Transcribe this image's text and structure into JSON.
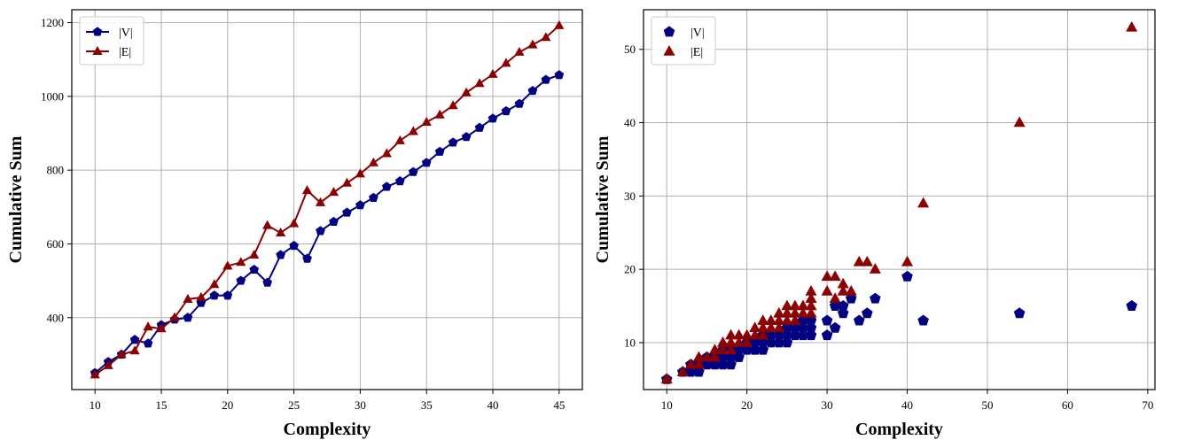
{
  "colors": {
    "V": "#000080",
    "E": "#8B0000",
    "grid": "#b0b0b0"
  },
  "chart_data": [
    {
      "type": "line",
      "xlabel": "Complexity",
      "ylabel": "Cumulative Sum",
      "xlim": [
        8.25,
        46.75
      ],
      "ylim": [
        205,
        1235
      ],
      "xticks": [
        10,
        15,
        20,
        25,
        30,
        35,
        40,
        45
      ],
      "yticks": [
        400,
        600,
        800,
        1000,
        1200
      ],
      "grid": true,
      "legend_position": "upper-left",
      "x": [
        10,
        11,
        12,
        13,
        14,
        15,
        16,
        17,
        18,
        19,
        20,
        21,
        22,
        23,
        24,
        25,
        26,
        27,
        28,
        29,
        30,
        31,
        32,
        33,
        34,
        35,
        36,
        37,
        38,
        39,
        40,
        41,
        42,
        43,
        44,
        45
      ],
      "series": [
        {
          "name": "|V|",
          "marker": "pentagon",
          "color": "#000080",
          "values": [
            250,
            280,
            300,
            340,
            330,
            380,
            395,
            400,
            440,
            460,
            460,
            500,
            530,
            495,
            570,
            595,
            560,
            635,
            660,
            685,
            705,
            725,
            755,
            770,
            795,
            820,
            850,
            875,
            890,
            915,
            940,
            960,
            980,
            1015,
            1045,
            1058
          ]
        },
        {
          "name": "|E|",
          "marker": "triangle",
          "color": "#8B0000",
          "values": [
            245,
            270,
            300,
            310,
            375,
            370,
            400,
            450,
            455,
            490,
            540,
            550,
            570,
            650,
            630,
            655,
            745,
            712,
            740,
            765,
            790,
            820,
            845,
            880,
            905,
            930,
            950,
            975,
            1010,
            1035,
            1060,
            1090,
            1120,
            1140,
            1160,
            1192
          ]
        }
      ]
    },
    {
      "type": "scatter",
      "xlabel": "Complexity",
      "ylabel": "Cumulative Sum",
      "xlim": [
        7.1,
        70.9
      ],
      "ylim": [
        3.6,
        55.4
      ],
      "xticks": [
        10,
        20,
        30,
        40,
        50,
        60,
        70
      ],
      "yticks": [
        10,
        20,
        30,
        40,
        50
      ],
      "grid": true,
      "legend_position": "upper-left",
      "series": [
        {
          "name": "|V|",
          "marker": "pentagon",
          "color": "#000080",
          "points": [
            [
              10,
              5
            ],
            [
              12,
              6
            ],
            [
              13,
              6
            ],
            [
              13,
              7
            ],
            [
              14,
              6
            ],
            [
              14,
              7
            ],
            [
              15,
              7
            ],
            [
              15,
              8
            ],
            [
              16,
              7
            ],
            [
              16,
              8
            ],
            [
              17,
              7
            ],
            [
              17,
              8
            ],
            [
              17,
              9
            ],
            [
              18,
              7
            ],
            [
              18,
              8
            ],
            [
              18,
              9
            ],
            [
              19,
              8
            ],
            [
              19,
              9
            ],
            [
              20,
              9
            ],
            [
              20,
              10
            ],
            [
              21,
              9
            ],
            [
              21,
              10
            ],
            [
              22,
              9
            ],
            [
              22,
              10
            ],
            [
              22,
              11
            ],
            [
              23,
              10
            ],
            [
              23,
              11
            ],
            [
              24,
              10
            ],
            [
              24,
              11
            ],
            [
              25,
              10
            ],
            [
              25,
              11
            ],
            [
              25,
              12
            ],
            [
              26,
              11
            ],
            [
              26,
              12
            ],
            [
              27,
              11
            ],
            [
              27,
              12
            ],
            [
              27,
              13
            ],
            [
              28,
              11
            ],
            [
              28,
              12
            ],
            [
              28,
              13
            ],
            [
              30,
              11
            ],
            [
              30,
              13
            ],
            [
              31,
              12
            ],
            [
              31,
              15
            ],
            [
              32,
              14
            ],
            [
              32,
              15
            ],
            [
              33,
              16
            ],
            [
              34,
              13
            ],
            [
              35,
              14
            ],
            [
              36,
              16
            ],
            [
              40,
              19
            ],
            [
              42,
              13
            ],
            [
              54,
              14
            ],
            [
              68,
              15
            ]
          ]
        },
        {
          "name": "|E|",
          "marker": "triangle",
          "color": "#8B0000",
          "points": [
            [
              10,
              5
            ],
            [
              12,
              6
            ],
            [
              13,
              7
            ],
            [
              14,
              7
            ],
            [
              14,
              8
            ],
            [
              15,
              8
            ],
            [
              16,
              8
            ],
            [
              16,
              9
            ],
            [
              17,
              9
            ],
            [
              17,
              10
            ],
            [
              18,
              9
            ],
            [
              18,
              10
            ],
            [
              18,
              11
            ],
            [
              19,
              10
            ],
            [
              19,
              11
            ],
            [
              20,
              10
            ],
            [
              20,
              11
            ],
            [
              21,
              11
            ],
            [
              21,
              12
            ],
            [
              22,
              11
            ],
            [
              22,
              12
            ],
            [
              22,
              13
            ],
            [
              23,
              12
            ],
            [
              23,
              13
            ],
            [
              24,
              12
            ],
            [
              24,
              13
            ],
            [
              24,
              14
            ],
            [
              25,
              13
            ],
            [
              25,
              14
            ],
            [
              25,
              15
            ],
            [
              26,
              13
            ],
            [
              26,
              14
            ],
            [
              26,
              15
            ],
            [
              27,
              14
            ],
            [
              27,
              15
            ],
            [
              28,
              14
            ],
            [
              28,
              15
            ],
            [
              28,
              16
            ],
            [
              28,
              17
            ],
            [
              30,
              17
            ],
            [
              30,
              19
            ],
            [
              31,
              16
            ],
            [
              31,
              19
            ],
            [
              32,
              17
            ],
            [
              32,
              18
            ],
            [
              33,
              17
            ],
            [
              34,
              21
            ],
            [
              35,
              21
            ],
            [
              36,
              20
            ],
            [
              40,
              21
            ],
            [
              42,
              29
            ],
            [
              54,
              40
            ],
            [
              68,
              53
            ]
          ]
        }
      ]
    }
  ]
}
